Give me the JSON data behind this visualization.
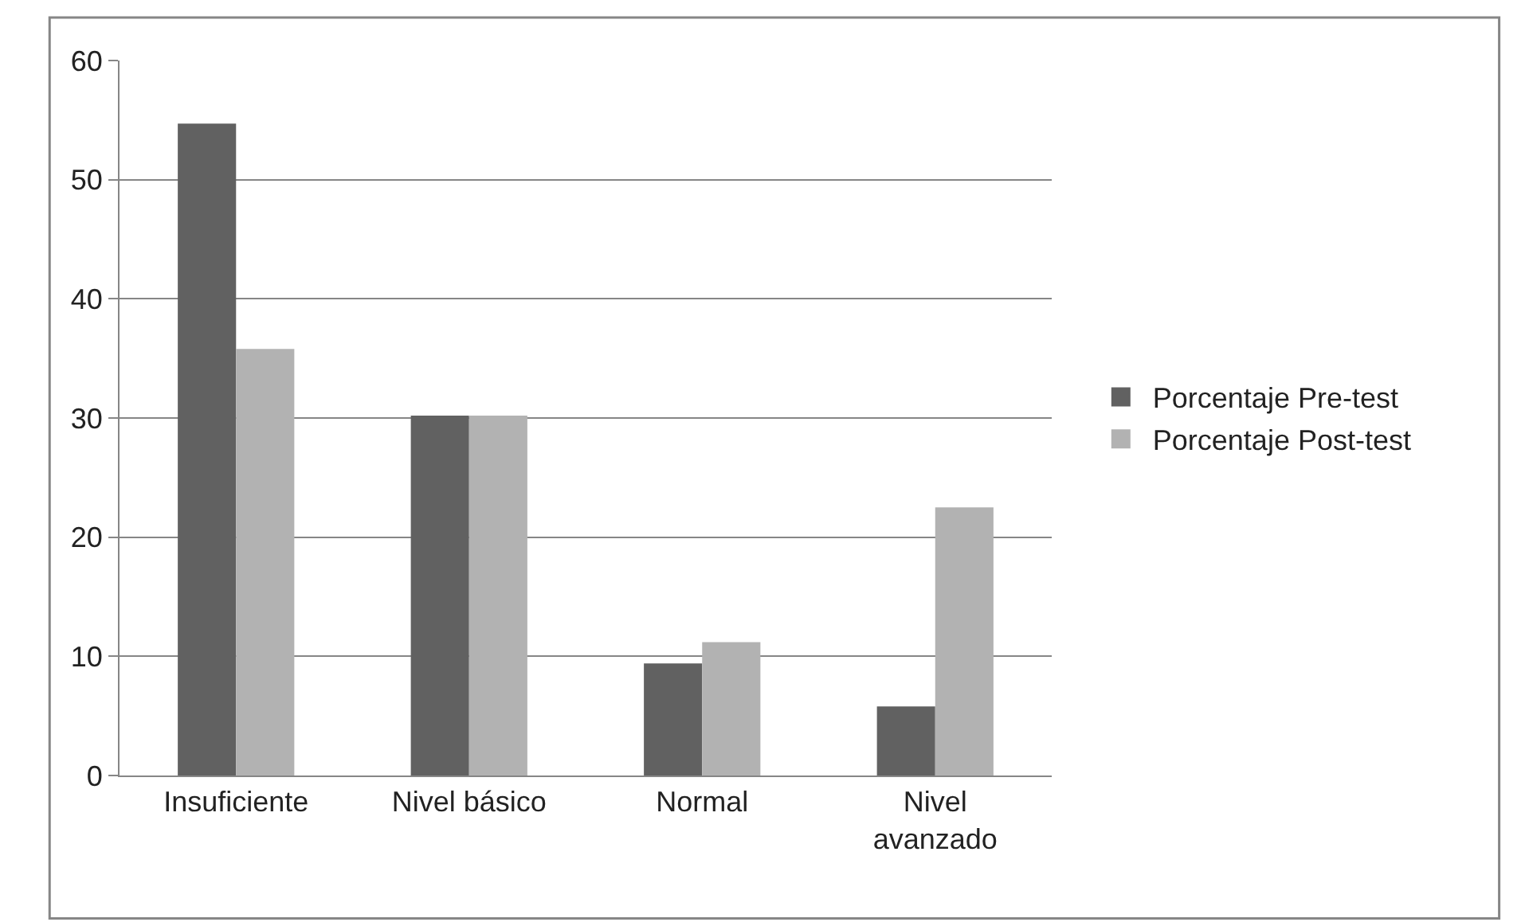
{
  "chart_data": {
    "type": "bar",
    "categories": [
      "Insuficiente",
      "Nivel básico",
      "Normal",
      "Nivel avanzado"
    ],
    "series": [
      {
        "name": "Porcentaje Pre-test",
        "color": "#616161",
        "values": [
          54.7,
          30.2,
          9.4,
          5.8
        ]
      },
      {
        "name": "Porcentaje Post-test",
        "color": "#b2b2b2",
        "values": [
          35.8,
          30.2,
          11.2,
          22.5
        ]
      }
    ],
    "ylim": [
      0,
      60
    ],
    "yticks": [
      0,
      10,
      20,
      30,
      40,
      50,
      60
    ],
    "grid": "y",
    "legend": "right"
  }
}
